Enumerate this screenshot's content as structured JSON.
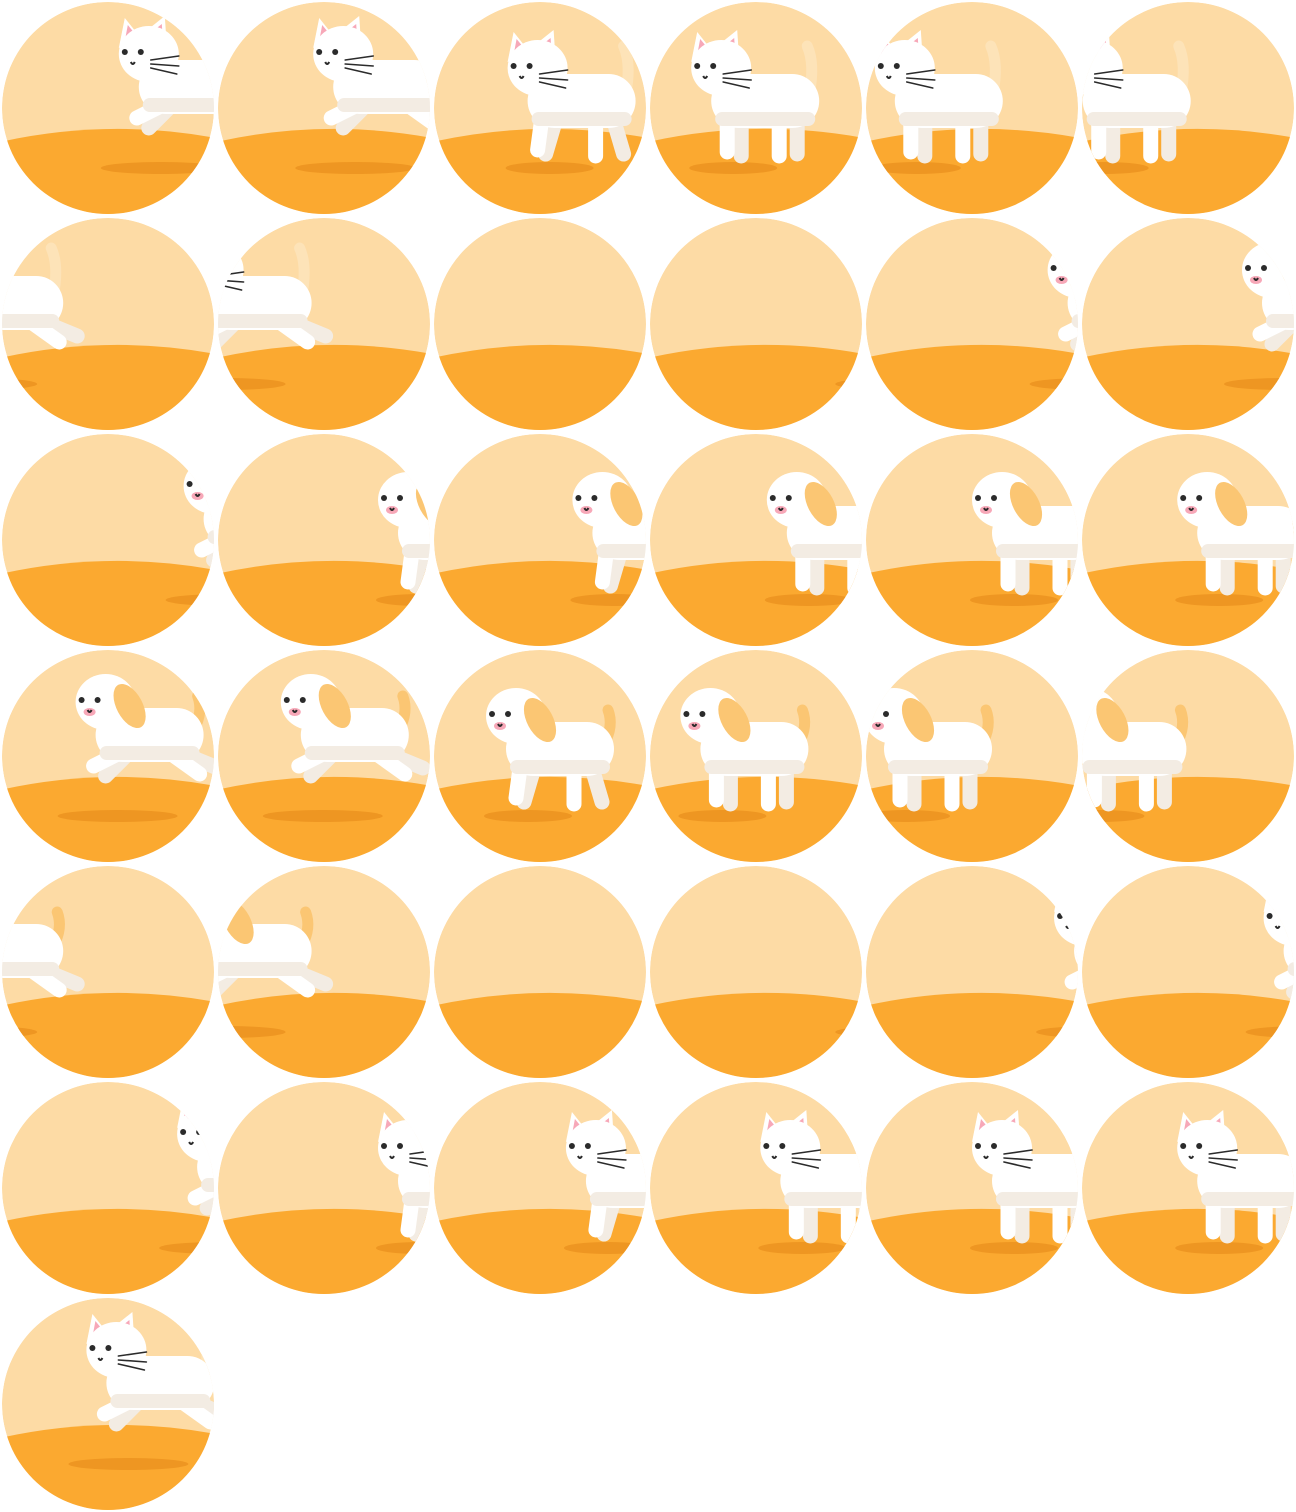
{
  "sprite_sheet": {
    "colors": {
      "sky": "#fddba5",
      "ground": "#fba930",
      "shadow": "#ee9622",
      "body": "#ffffff",
      "body_shade": "#f3ece3",
      "dog_ear": "#fbc673",
      "cat_tail": "#fde3b8",
      "eye": "#2b2b2b",
      "cheek": "#f7a8b8"
    },
    "frames": [
      {
        "animal": "cat",
        "pose": "leap",
        "offset": 0.55
      },
      {
        "animal": "cat",
        "pose": "leap",
        "offset": 0.45
      },
      {
        "animal": "cat",
        "pose": "step",
        "offset": 0.35
      },
      {
        "animal": "cat",
        "pose": "stand",
        "offset": 0.2
      },
      {
        "animal": "cat",
        "pose": "stand",
        "offset": 0.05
      },
      {
        "animal": "cat",
        "pose": "stand",
        "offset": -0.08
      },
      {
        "animal": "cat",
        "pose": "leap",
        "offset": -0.3
      },
      {
        "animal": "cat",
        "pose": "leap",
        "offset": -0.15
      },
      {
        "animal": "dog",
        "pose": "leap",
        "offset": 1.05
      },
      {
        "animal": "dog",
        "pose": "leap",
        "offset": 0.95
      },
      {
        "animal": "dog",
        "pose": "leap",
        "offset": 0.85
      },
      {
        "animal": "dog",
        "pose": "leap",
        "offset": 0.75
      },
      {
        "animal": "dog",
        "pose": "leap",
        "offset": 0.85
      },
      {
        "animal": "dog",
        "pose": "step",
        "offset": 0.75
      },
      {
        "animal": "dog",
        "pose": "step",
        "offset": 0.65
      },
      {
        "animal": "dog",
        "pose": "stand",
        "offset": 0.55
      },
      {
        "animal": "dog",
        "pose": "stand",
        "offset": 0.5
      },
      {
        "animal": "dog",
        "pose": "stand",
        "offset": 0.45
      },
      {
        "animal": "dog",
        "pose": "leap",
        "offset": 0.35
      },
      {
        "animal": "dog",
        "pose": "leap",
        "offset": 0.3
      },
      {
        "animal": "dog",
        "pose": "step",
        "offset": 0.25
      },
      {
        "animal": "dog",
        "pose": "stand",
        "offset": 0.15
      },
      {
        "animal": "dog",
        "pose": "stand",
        "offset": 0.0
      },
      {
        "animal": "dog",
        "pose": "stand",
        "offset": -0.1
      },
      {
        "animal": "dog",
        "pose": "leap",
        "offset": -0.3
      },
      {
        "animal": "dog",
        "pose": "leap",
        "offset": -0.15
      },
      {
        "animal": "cat",
        "pose": "leap",
        "offset": 1.05
      },
      {
        "animal": "cat",
        "pose": "leap",
        "offset": 0.95
      },
      {
        "animal": "cat",
        "pose": "leap",
        "offset": 0.88
      },
      {
        "animal": "cat",
        "pose": "leap",
        "offset": 0.85
      },
      {
        "animal": "cat",
        "pose": "leap",
        "offset": 0.82
      },
      {
        "animal": "cat",
        "pose": "step",
        "offset": 0.75
      },
      {
        "animal": "cat",
        "pose": "step",
        "offset": 0.62
      },
      {
        "animal": "cat",
        "pose": "stand",
        "offset": 0.52
      },
      {
        "animal": "cat",
        "pose": "stand",
        "offset": 0.5
      },
      {
        "animal": "cat",
        "pose": "stand",
        "offset": 0.45
      },
      {
        "animal": "cat",
        "pose": "leap",
        "offset": 0.4
      }
    ]
  }
}
